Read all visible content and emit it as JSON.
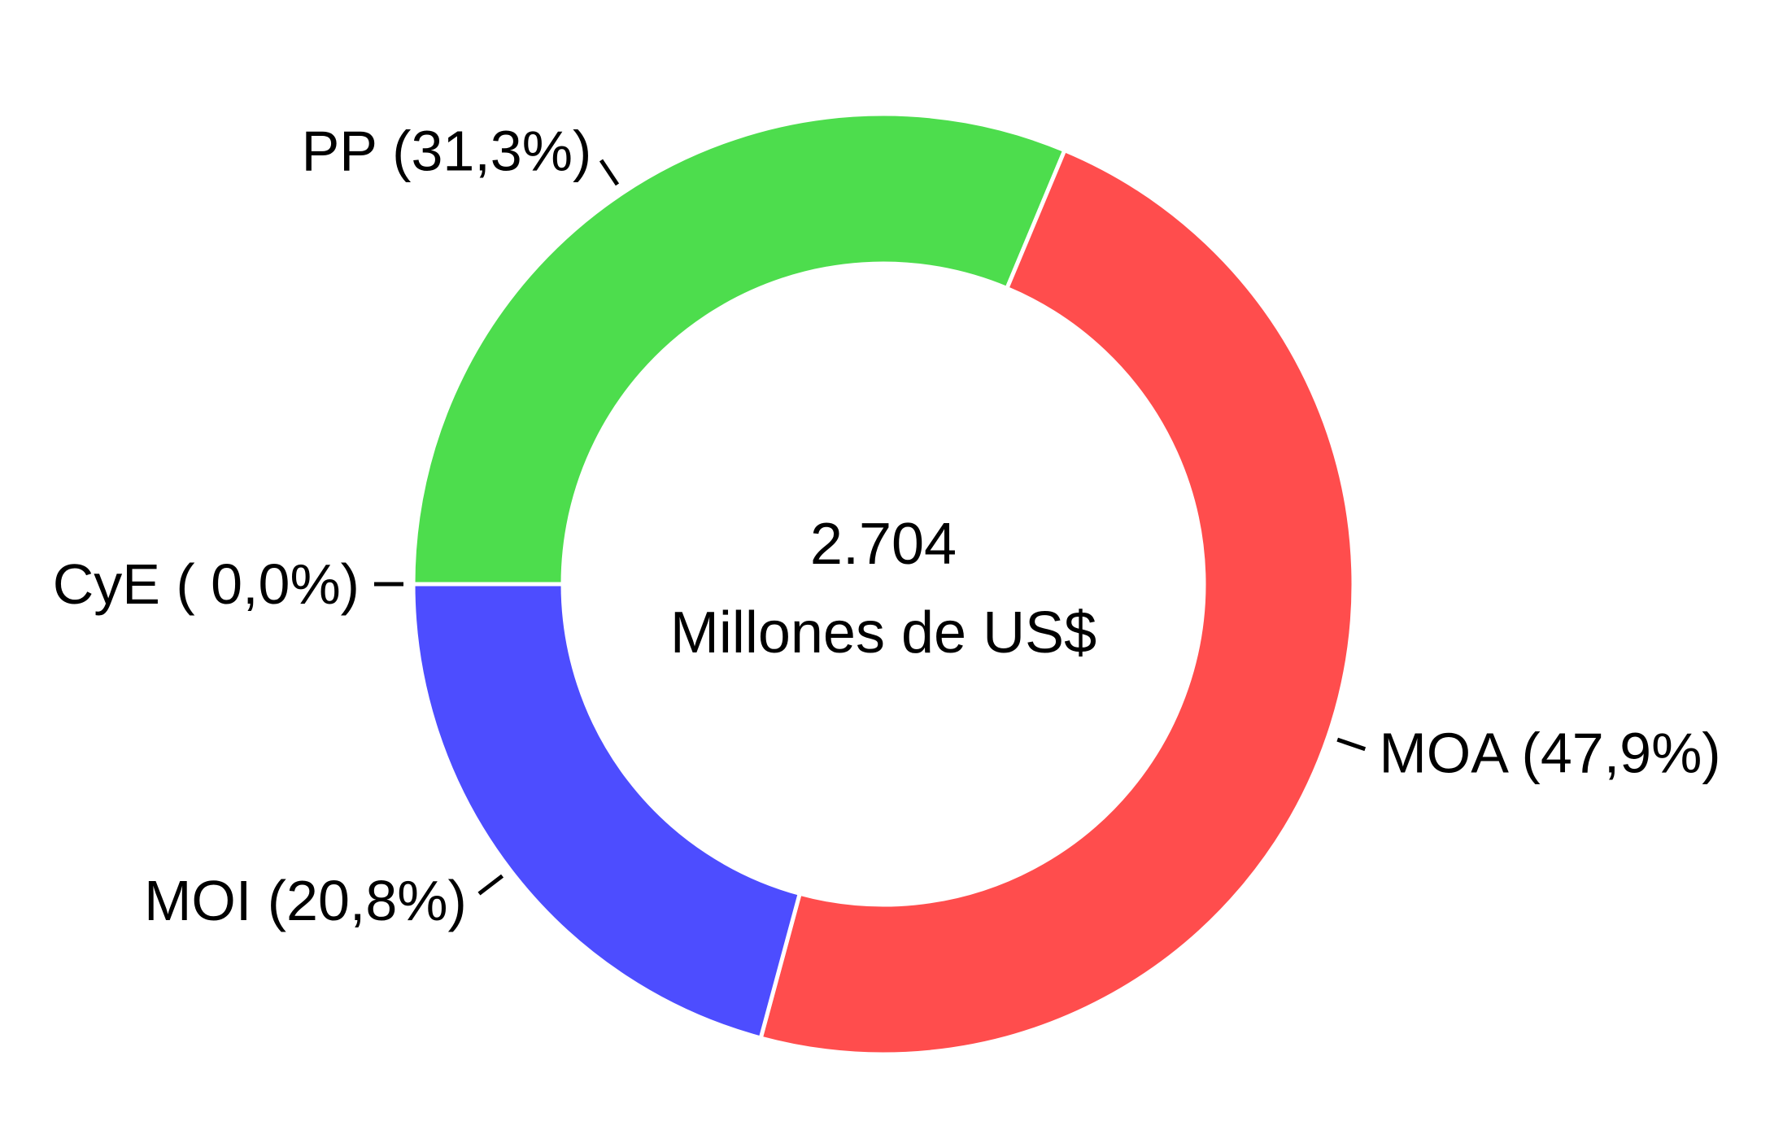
{
  "chart_data": {
    "type": "pie",
    "variant": "donut",
    "slices": [
      {
        "label": "PP (31,3%)",
        "value": 31.3,
        "color": "#4ddd4d"
      },
      {
        "label": "MOA (47,9%)",
        "value": 47.9,
        "color": "#ff4d4d"
      },
      {
        "label": "MOI (20,8%)",
        "value": 20.8,
        "color": "#4d4dff"
      },
      {
        "label": "CyE ( 0,0%)",
        "value": 0.0,
        "color": "#4dd8ff"
      }
    ],
    "center_value": "2.704",
    "center_unit": "Millones de US$",
    "legend": "none"
  }
}
